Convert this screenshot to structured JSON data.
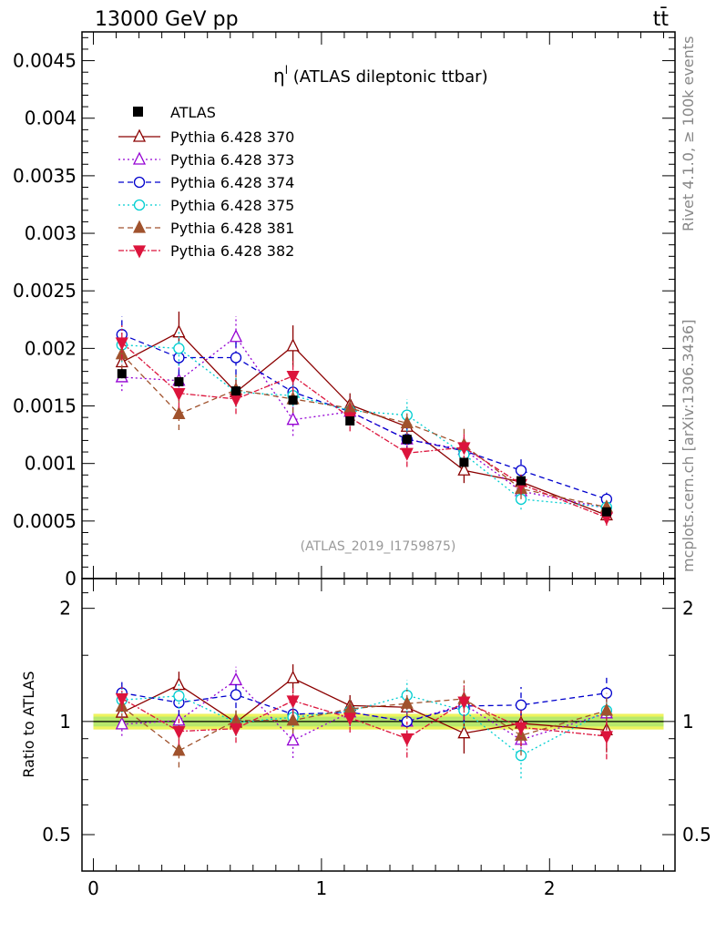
{
  "header": {
    "left": "13000 GeV pp",
    "right": "tt̄"
  },
  "side": {
    "rivet": "Rivet 4.1.0, ≥ 100k events",
    "site": "mcplots.cern.ch [arXiv:1306.3436]"
  },
  "chart_data": {
    "type": "scatter",
    "title_sym": "η",
    "title_sup": "l",
    "title_rest": " (ATLAS dileptonic ttbar)",
    "analysis": "(ATLAS_2019_I1759875)",
    "ylabel_ratio": "Ratio to ATLAS",
    "ylim_main": [
      0,
      0.00475
    ],
    "ylim_ratio": [
      0.4,
      2.4
    ],
    "xlim": [
      -0.05,
      2.55
    ],
    "main_ticks": [
      "0",
      "0.0005",
      "0.001",
      "0.0015",
      "0.002",
      "0.0025",
      "0.003",
      "0.0035",
      "0.004",
      "0.0045"
    ],
    "main_tick_values": [
      0,
      0.0005,
      0.001,
      0.0015,
      0.002,
      0.0025,
      0.003,
      0.0035,
      0.004,
      0.0045
    ],
    "ratio_ticks": [
      "0.5",
      "1",
      "2"
    ],
    "ratio_tick_values": [
      0.5,
      1,
      2
    ],
    "x_ticks": [
      "0",
      "1",
      "2"
    ],
    "x_tick_values": [
      0,
      1,
      2
    ],
    "x": [
      0.125,
      0.375,
      0.625,
      0.875,
      1.125,
      1.375,
      1.625,
      1.875,
      2.25
    ],
    "data": {
      "name": "ATLAS",
      "values": [
        0.00178,
        0.00171,
        0.00163,
        0.00155,
        0.00137,
        0.00121,
        0.00101,
        0.00085,
        0.00058
      ],
      "errors": [
        4e-05,
        4e-05,
        4e-05,
        4e-05,
        3e-05,
        3e-05,
        3e-05,
        3e-05,
        3e-05
      ],
      "band": 0.03
    },
    "series": [
      {
        "name": "Pythia 6.428 370",
        "color": "#8b0000",
        "marker": "tri-up-open",
        "dash": "",
        "values": [
          0.00188,
          0.00214,
          0.00162,
          0.00202,
          0.00151,
          0.00132,
          0.00094,
          0.00084,
          0.00055
        ],
        "errors": [
          0.00012,
          0.00018,
          0.00012,
          0.00018,
          0.0001,
          0.0001,
          0.00011,
          8e-05,
          7e-05
        ]
      },
      {
        "name": "Pythia 6.428 373",
        "color": "#9400d3",
        "marker": "tri-up-open",
        "dash": "2,3",
        "values": [
          0.00175,
          0.00172,
          0.0021,
          0.00138,
          0.00145,
          0.00121,
          0.00112,
          0.00076,
          0.00061
        ],
        "errors": [
          0.00012,
          0.00014,
          0.00018,
          0.00014,
          0.00012,
          0.00011,
          0.00011,
          8e-05,
          7e-05
        ]
      },
      {
        "name": "Pythia 6.428 374",
        "color": "#0000cd",
        "marker": "circle-open",
        "dash": "6,4",
        "values": [
          0.00212,
          0.00192,
          0.00192,
          0.00162,
          0.00145,
          0.00121,
          0.00111,
          0.00094,
          0.00069
        ],
        "errors": [
          0.00016,
          0.00015,
          0.00015,
          0.00012,
          0.00011,
          0.00011,
          0.0001,
          0.00011,
          7e-05
        ]
      },
      {
        "name": "Pythia 6.428 375",
        "color": "#00ced1",
        "marker": "circle-open",
        "dash": "2,3",
        "values": [
          0.00203,
          0.002,
          0.00162,
          0.00159,
          0.00146,
          0.00142,
          0.00108,
          0.00069,
          0.00062
        ],
        "errors": [
          0.00015,
          0.00015,
          0.00013,
          0.00013,
          0.00011,
          0.00014,
          0.00011,
          9e-05,
          6e-05
        ]
      },
      {
        "name": "Pythia 6.428 381",
        "color": "#a0522d",
        "marker": "tri-up-filled",
        "dash": "6,4",
        "values": [
          0.00195,
          0.00143,
          0.00164,
          0.00156,
          0.00148,
          0.00135,
          0.00116,
          0.00078,
          0.00062
        ],
        "errors": [
          0.00014,
          0.00014,
          0.00013,
          0.00012,
          0.00012,
          0.00012,
          0.00014,
          9e-05,
          7e-05
        ]
      },
      {
        "name": "Pythia 6.428 382",
        "color": "#dc143c",
        "marker": "tri-down-filled",
        "dash": "6,2,2,2",
        "values": [
          0.00205,
          0.00161,
          0.00156,
          0.00176,
          0.0014,
          0.00109,
          0.00114,
          0.00082,
          0.00053
        ],
        "errors": [
          0.00015,
          0.00013,
          0.00013,
          0.00014,
          0.00012,
          0.00012,
          0.00012,
          9e-05,
          7e-05
        ]
      }
    ]
  }
}
